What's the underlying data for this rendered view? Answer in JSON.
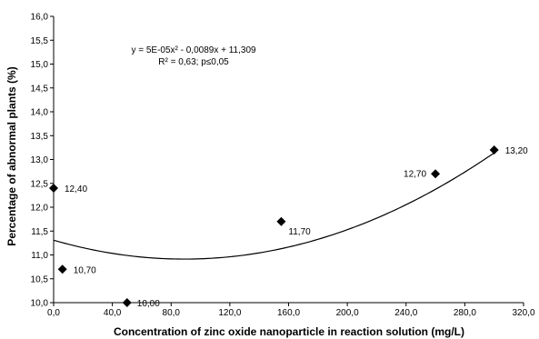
{
  "chart_data": {
    "type": "scatter",
    "xlabel": "Concentration of zinc oxide nanoparticle in reaction solution (mg/L)",
    "ylabel": "Percentage of abnormal plants (%)",
    "xlim": [
      0,
      320
    ],
    "ylim": [
      10,
      16
    ],
    "x_ticks": [
      "0,0",
      "40,0",
      "80,0",
      "120,0",
      "160,0",
      "200,0",
      "240,0",
      "280,0",
      "320,0"
    ],
    "y_ticks": [
      "10,0",
      "10,5",
      "11,0",
      "11,5",
      "12,0",
      "12,5",
      "13,0",
      "13,5",
      "14,0",
      "14,5",
      "15,0",
      "15,5",
      "16,0"
    ],
    "grid": false,
    "legend": "none",
    "points": [
      {
        "x": 0,
        "y": 12.4,
        "label": "12,40"
      },
      {
        "x": 6,
        "y": 10.7,
        "label": "10,70"
      },
      {
        "x": 50,
        "y": 10.0,
        "label": "10,00"
      },
      {
        "x": 155,
        "y": 11.7,
        "label": "11,70"
      },
      {
        "x": 260,
        "y": 12.7,
        "label": "12,70"
      },
      {
        "x": 300,
        "y": 13.2,
        "label": "13,20"
      }
    ],
    "trendline": {
      "type": "polynomial",
      "coefficients": {
        "a": 5e-05,
        "b": -0.0089,
        "c": 11.309
      },
      "x_range": [
        0,
        300
      ],
      "equation": "y = 5E-05x² - 0,0089x + 11,309",
      "stats": "R² = 0,63; p≤0,05"
    },
    "colors": {
      "marker": "#000000",
      "line": "#000000"
    }
  }
}
